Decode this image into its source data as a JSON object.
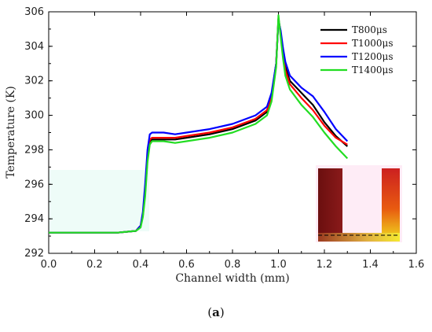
{
  "chart_data": {
    "type": "line",
    "xlabel": "Channel width (mm)",
    "ylabel": "Temperature (K)",
    "xlim": [
      0.0,
      1.6
    ],
    "ylim": [
      292,
      306
    ],
    "xticks": [
      "0.0",
      "0.2",
      "0.4",
      "0.6",
      "0.8",
      "1.0",
      "1.2",
      "1.4",
      "1.6"
    ],
    "yticks": [
      "292",
      "294",
      "296",
      "298",
      "300",
      "302",
      "304",
      "306"
    ],
    "grid": false,
    "legend_position": "top-right",
    "series": [
      {
        "name": "T800μs",
        "color": "#000000",
        "x": [
          0.0,
          0.2,
          0.3,
          0.38,
          0.4,
          0.41,
          0.42,
          0.43,
          0.44,
          0.45,
          0.5,
          0.55,
          0.6,
          0.7,
          0.8,
          0.9,
          0.95,
          0.97,
          0.99,
          1.0,
          1.01,
          1.02,
          1.03,
          1.05,
          1.1,
          1.15,
          1.2,
          1.25,
          1.3
        ],
        "y": [
          293.2,
          293.2,
          293.2,
          293.3,
          293.6,
          294.2,
          295.5,
          297.5,
          298.4,
          298.6,
          298.6,
          298.6,
          298.7,
          298.9,
          299.2,
          299.7,
          300.2,
          301.0,
          303.0,
          305.6,
          304.8,
          303.6,
          302.8,
          302.0,
          301.3,
          300.6,
          299.6,
          298.8,
          298.2
        ]
      },
      {
        "name": "T1000μs",
        "color": "#ff0000",
        "x": [
          0.0,
          0.2,
          0.3,
          0.38,
          0.4,
          0.41,
          0.42,
          0.43,
          0.44,
          0.45,
          0.5,
          0.55,
          0.6,
          0.7,
          0.8,
          0.9,
          0.95,
          0.97,
          0.99,
          1.0,
          1.01,
          1.02,
          1.03,
          1.05,
          1.1,
          1.15,
          1.2,
          1.25,
          1.3
        ],
        "y": [
          293.2,
          293.2,
          293.2,
          293.3,
          293.6,
          294.3,
          295.7,
          297.7,
          298.6,
          298.7,
          298.7,
          298.7,
          298.8,
          299.0,
          299.3,
          299.8,
          300.3,
          301.1,
          303.0,
          305.6,
          304.7,
          303.5,
          302.6,
          301.8,
          301.0,
          300.3,
          299.4,
          298.7,
          298.3
        ]
      },
      {
        "name": "T1200μs",
        "color": "#0000ff",
        "x": [
          0.0,
          0.2,
          0.3,
          0.38,
          0.4,
          0.41,
          0.42,
          0.43,
          0.44,
          0.45,
          0.5,
          0.55,
          0.6,
          0.7,
          0.8,
          0.9,
          0.95,
          0.97,
          0.99,
          1.0,
          1.01,
          1.02,
          1.03,
          1.05,
          1.1,
          1.15,
          1.2,
          1.25,
          1.3
        ],
        "y": [
          293.2,
          293.2,
          293.2,
          293.3,
          293.6,
          294.4,
          296.0,
          298.0,
          298.9,
          299.0,
          299.0,
          298.9,
          299.0,
          299.2,
          299.5,
          300.0,
          300.5,
          301.3,
          303.0,
          305.5,
          304.9,
          303.9,
          303.1,
          302.3,
          301.6,
          301.1,
          300.2,
          299.2,
          298.5
        ]
      },
      {
        "name": "T1400μs",
        "color": "#22dd22",
        "x": [
          0.0,
          0.2,
          0.3,
          0.38,
          0.4,
          0.41,
          0.42,
          0.43,
          0.44,
          0.45,
          0.5,
          0.55,
          0.6,
          0.7,
          0.8,
          0.9,
          0.95,
          0.97,
          0.99,
          1.0,
          1.01,
          1.02,
          1.03,
          1.05,
          1.1,
          1.15,
          1.2,
          1.25,
          1.3
        ],
        "y": [
          293.2,
          293.2,
          293.2,
          293.3,
          293.5,
          294.1,
          295.3,
          297.3,
          298.3,
          298.5,
          298.5,
          298.4,
          298.5,
          298.7,
          299.0,
          299.5,
          300.0,
          300.8,
          302.8,
          305.8,
          304.5,
          303.3,
          302.3,
          301.5,
          300.6,
          299.9,
          299.0,
          298.2,
          297.5
        ]
      }
    ]
  },
  "caption": "(a)",
  "caption_letter": "a"
}
